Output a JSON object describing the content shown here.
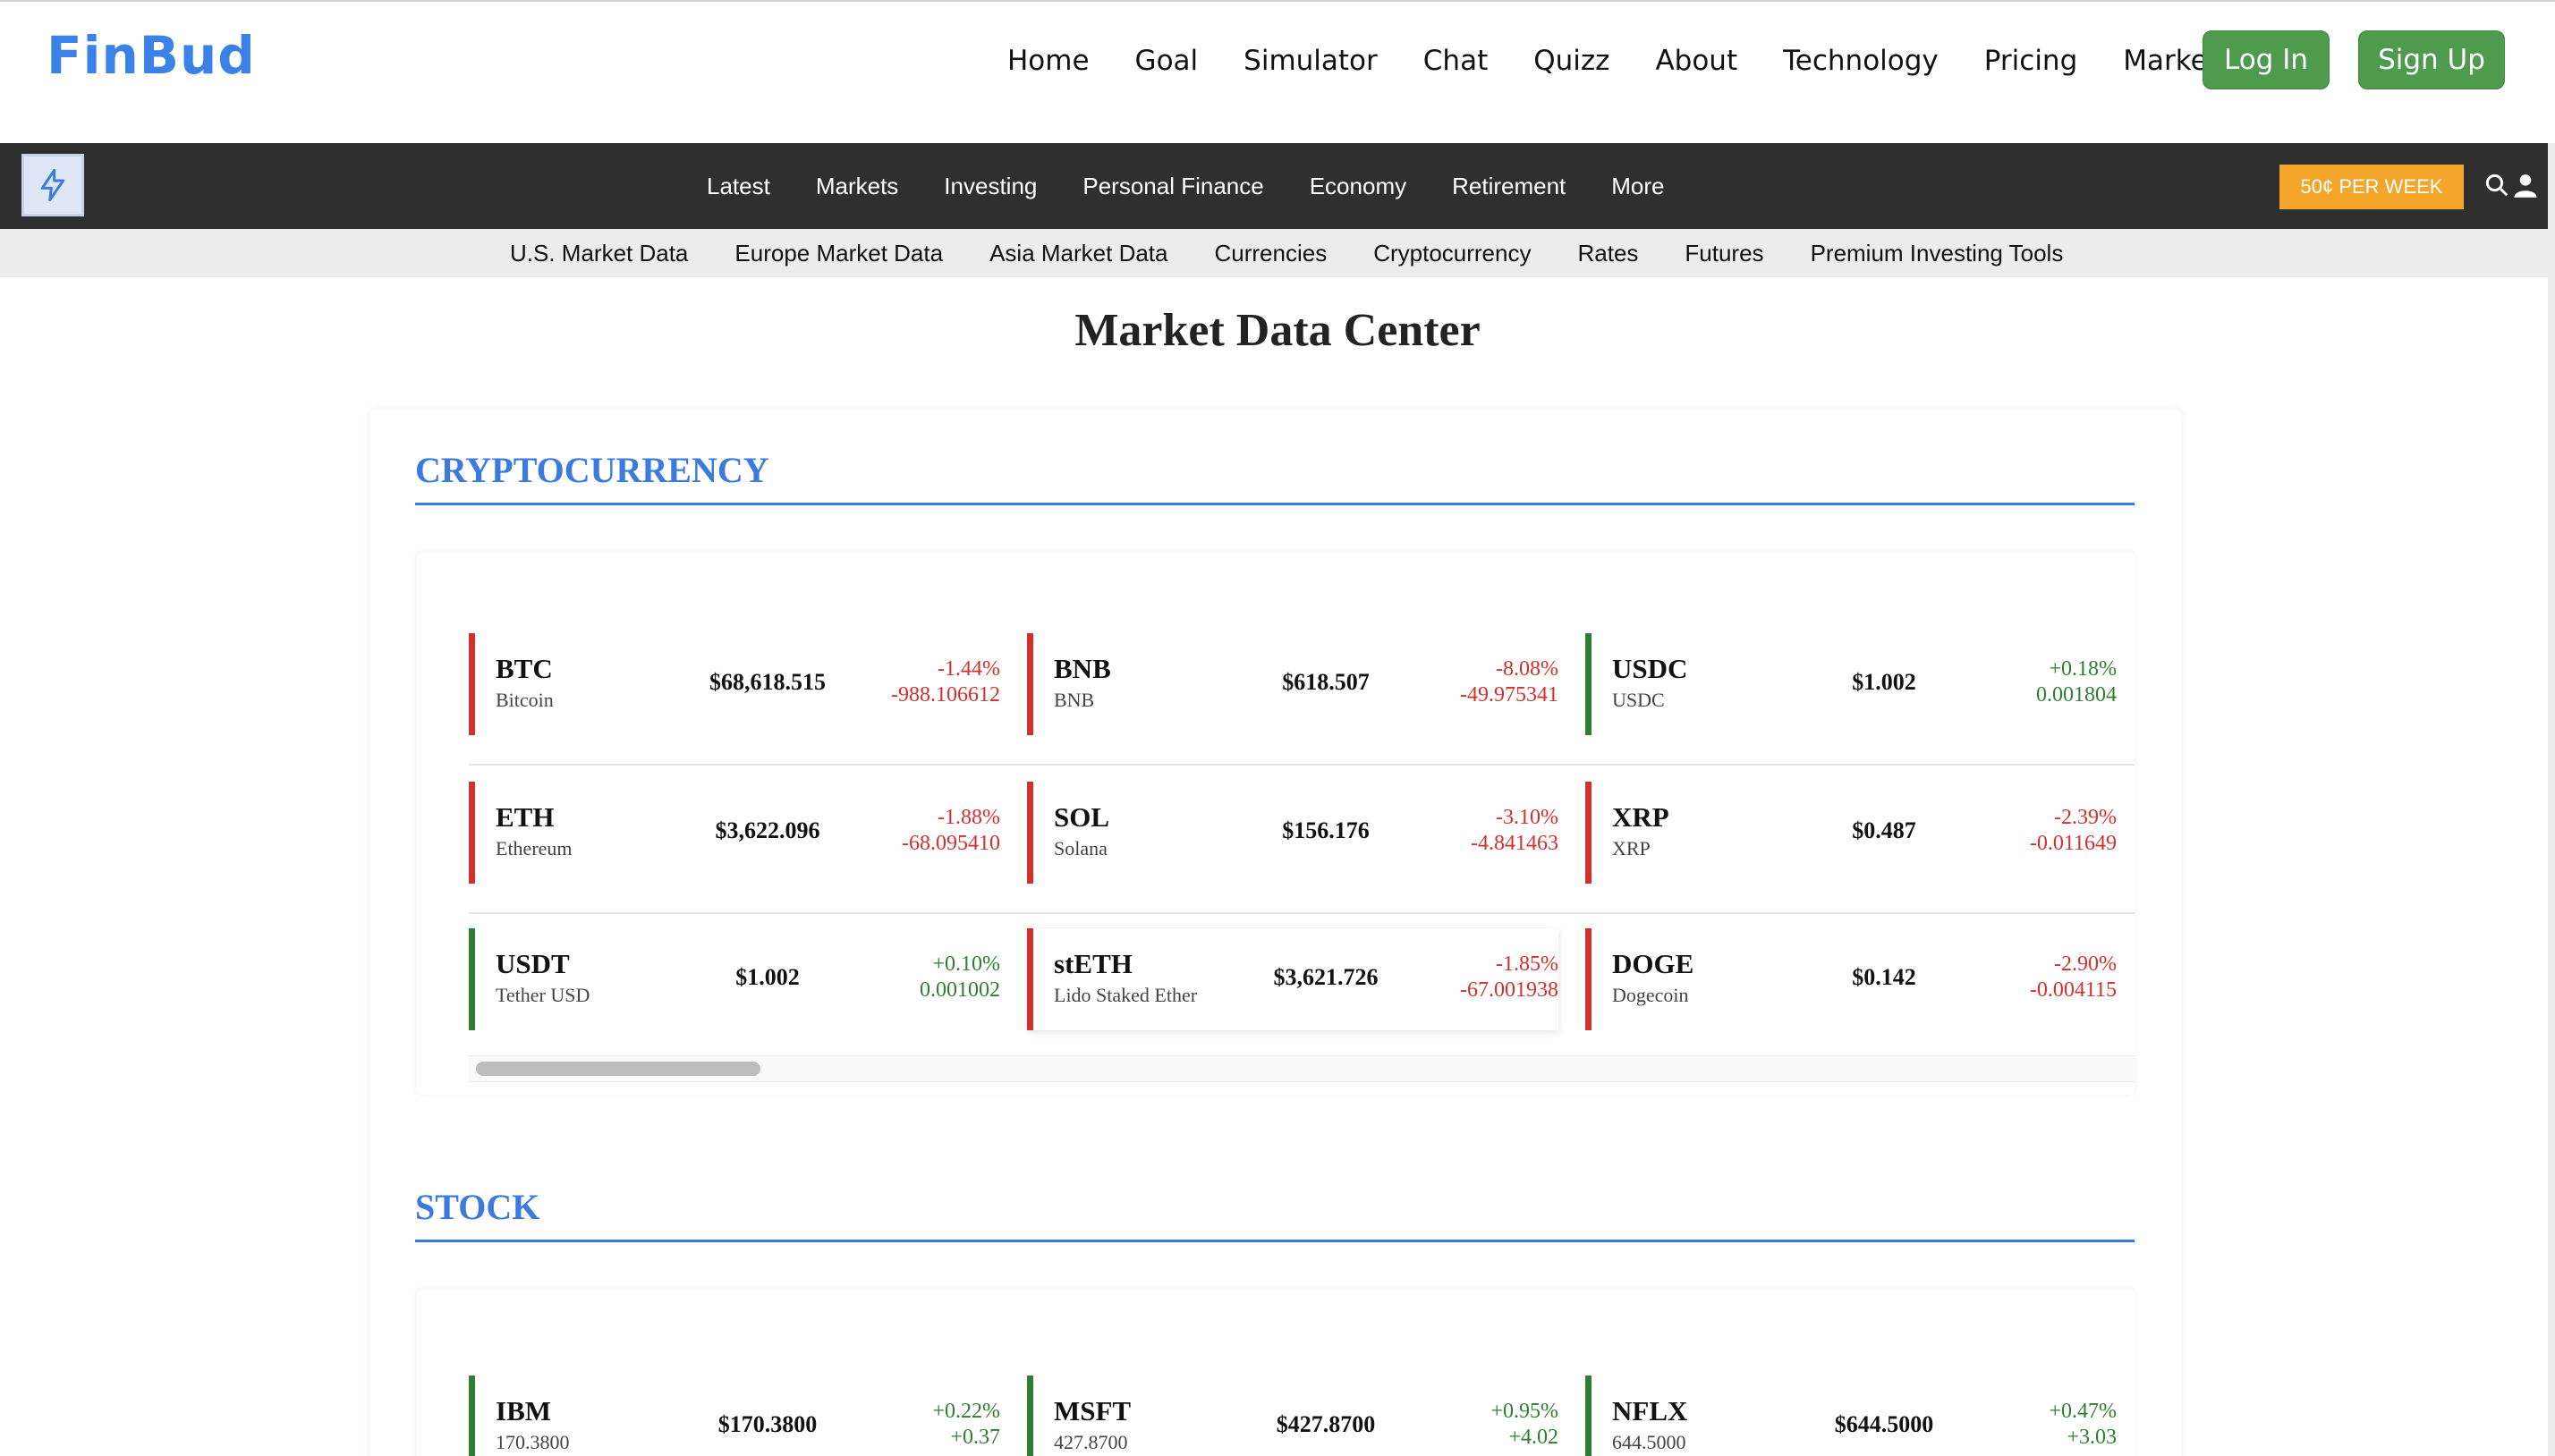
{
  "header": {
    "logo": "FinBud",
    "nav": [
      "Home",
      "Goal",
      "Simulator",
      "Chat",
      "Quizz",
      "About",
      "Technology",
      "Pricing",
      "Market"
    ],
    "login_label": "Log In",
    "signup_label": "Sign Up"
  },
  "section_nav": {
    "items": [
      "Latest",
      "Markets",
      "Investing",
      "Personal Finance",
      "Economy",
      "Retirement",
      "More"
    ],
    "promo": "50¢ PER WEEK"
  },
  "sub_nav": {
    "items": [
      "U.S. Market Data",
      "Europe Market Data",
      "Asia Market Data",
      "Currencies",
      "Cryptocurrency",
      "Rates",
      "Futures",
      "Premium Investing Tools"
    ]
  },
  "page_title": "Market Data Center",
  "crypto": {
    "title": "CRYPTOCURRENCY",
    "rows": [
      [
        {
          "symbol": "BTC",
          "name": "Bitcoin",
          "price": "$68,618.515",
          "pct": "-1.44%",
          "abs": "-988.106612",
          "dir": "neg"
        },
        {
          "symbol": "BNB",
          "name": "BNB",
          "price": "$618.507",
          "pct": "-8.08%",
          "abs": "-49.975341",
          "dir": "neg"
        },
        {
          "symbol": "USDC",
          "name": "USDC",
          "price": "$1.002",
          "pct": "+0.18%",
          "abs": "0.001804",
          "dir": "pos"
        }
      ],
      [
        {
          "symbol": "ETH",
          "name": "Ethereum",
          "price": "$3,622.096",
          "pct": "-1.88%",
          "abs": "-68.095410",
          "dir": "neg"
        },
        {
          "symbol": "SOL",
          "name": "Solana",
          "price": "$156.176",
          "pct": "-3.10%",
          "abs": "-4.841463",
          "dir": "neg"
        },
        {
          "symbol": "XRP",
          "name": "XRP",
          "price": "$0.487",
          "pct": "-2.39%",
          "abs": "-0.011649",
          "dir": "neg"
        }
      ],
      [
        {
          "symbol": "USDT",
          "name": "Tether USD",
          "price": "$1.002",
          "pct": "+0.10%",
          "abs": "0.001002",
          "dir": "pos"
        },
        {
          "symbol": "stETH",
          "name": "Lido Staked Ether",
          "price": "$3,621.726",
          "pct": "-1.85%",
          "abs": "-67.001938",
          "dir": "neg"
        },
        {
          "symbol": "DOGE",
          "name": "Dogecoin",
          "price": "$0.142",
          "pct": "-2.90%",
          "abs": "-0.004115",
          "dir": "neg"
        }
      ]
    ]
  },
  "stock": {
    "title": "STOCK",
    "rows": [
      [
        {
          "symbol": "IBM",
          "name": "170.3800",
          "price": "$170.3800",
          "pct": "+0.22%",
          "abs": "+0.37",
          "dir": "pos"
        },
        {
          "symbol": "MSFT",
          "name": "427.8700",
          "price": "$427.8700",
          "pct": "+0.95%",
          "abs": "+4.02",
          "dir": "pos"
        },
        {
          "symbol": "NFLX",
          "name": "644.5000",
          "price": "$644.5000",
          "pct": "+0.47%",
          "abs": "+3.03",
          "dir": "pos"
        }
      ]
    ]
  },
  "colors": {
    "accent": "#3b7be0",
    "positive": "#2e7d32",
    "negative": "#d32f2f",
    "button": "#4e9b4e",
    "promo": "#f4a62a"
  }
}
